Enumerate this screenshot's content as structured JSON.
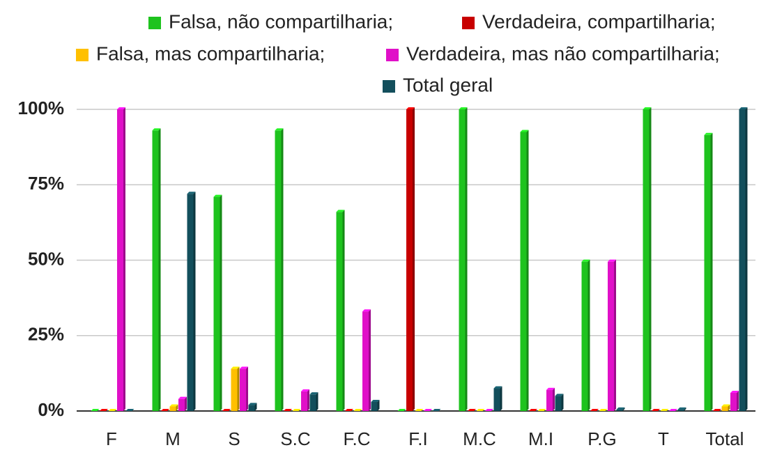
{
  "chart_data": {
    "type": "bar",
    "categories": [
      "F",
      "M",
      "S",
      "S.C",
      "F.C",
      "F.I",
      "M.C",
      "M.I",
      "P.G",
      "T",
      "Total"
    ],
    "series": [
      {
        "name": "Falsa, não compartilharia;",
        "color": "#1ec31e",
        "values": [
          0,
          93,
          71,
          93,
          66,
          0,
          100,
          92.5,
          49.5,
          100,
          91.5
        ]
      },
      {
        "name": "Verdadeira, compartilharia;",
        "color": "#c80000",
        "values": [
          0,
          0,
          0,
          0,
          0,
          100,
          0,
          0,
          0,
          0,
          0
        ]
      },
      {
        "name": "Falsa, mas compartilharia;",
        "color": "#ffc000",
        "values": [
          0,
          1.5,
          14,
          0,
          0,
          0,
          0,
          0,
          0,
          0,
          1.5
        ]
      },
      {
        "name": "Verdadeira, mas não compartilharia;",
        "color": "#e010c8",
        "values": [
          100,
          4,
          14,
          6.5,
          33,
          0,
          0,
          7,
          49.5,
          0,
          6
        ]
      },
      {
        "name": "Total geral",
        "color": "#134f5c",
        "values": [
          0,
          72,
          2,
          5.5,
          3,
          0,
          7.5,
          5,
          0.5,
          0.5,
          100
        ]
      }
    ],
    "ylim": [
      0,
      100
    ],
    "yticks": [
      {
        "value": 0,
        "label": "0%"
      },
      {
        "value": 25,
        "label": "25%"
      },
      {
        "value": 50,
        "label": "50%"
      },
      {
        "value": 75,
        "label": "75%"
      },
      {
        "value": 100,
        "label": "100%"
      }
    ],
    "grid": true,
    "legend": "top"
  }
}
